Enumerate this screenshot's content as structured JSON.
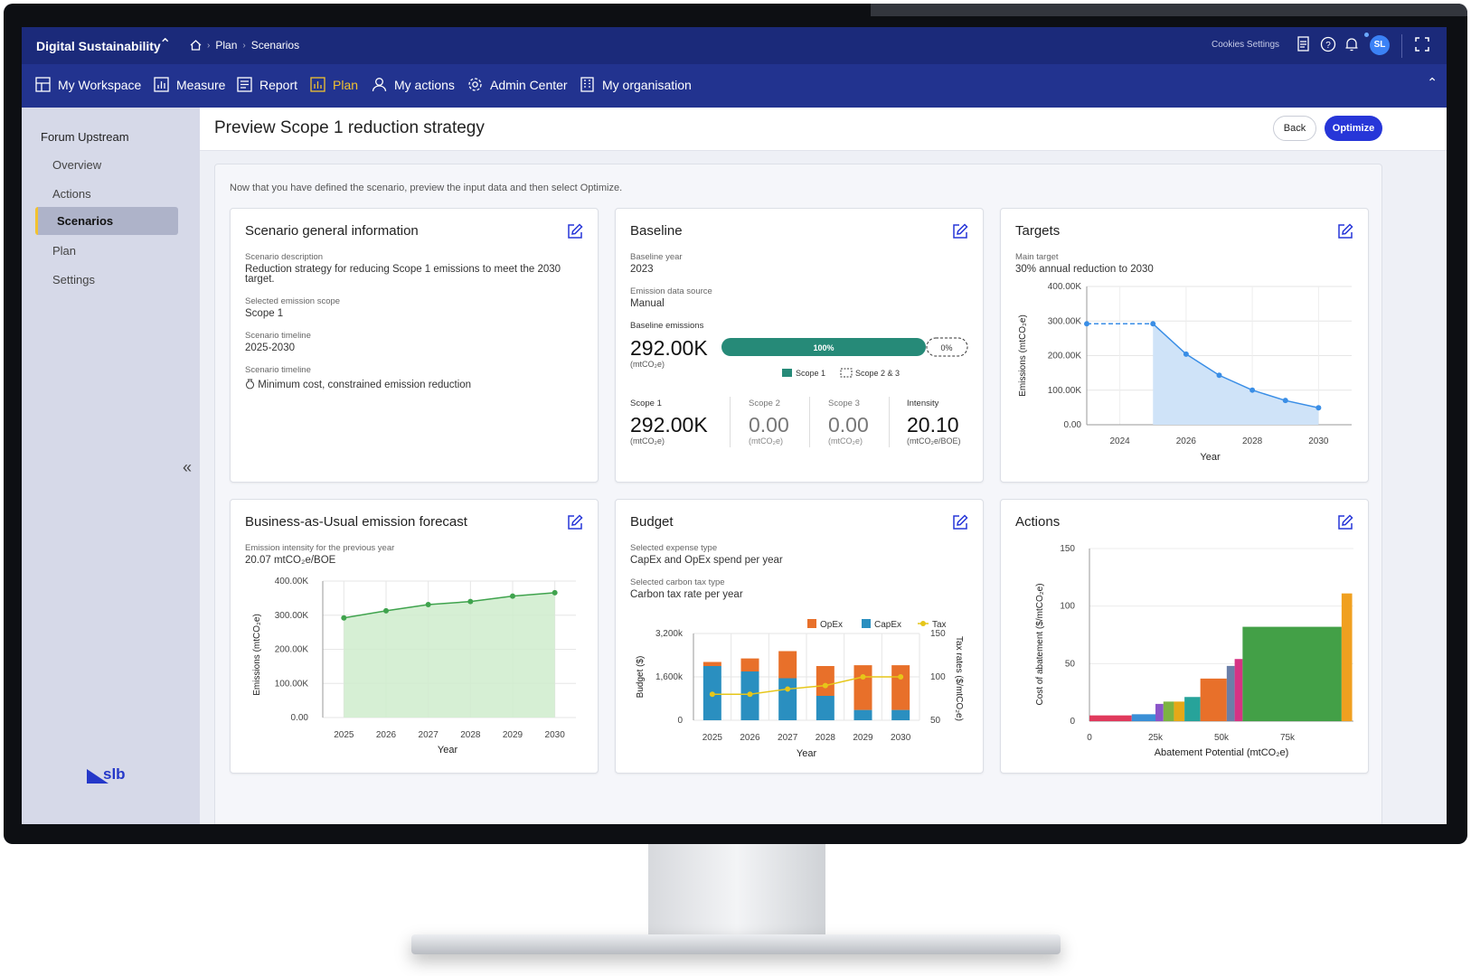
{
  "topbar": {
    "brand": "Digital Sustainability",
    "breadcrumb": [
      "Plan",
      "Scenarios"
    ],
    "cookies": "Cookies Settings",
    "avatar": "SL"
  },
  "nav": {
    "items": [
      {
        "label": "My Workspace",
        "icon": "grid-icon"
      },
      {
        "label": "Measure",
        "icon": "bar-chart-icon"
      },
      {
        "label": "Report",
        "icon": "document-icon"
      },
      {
        "label": "Plan",
        "icon": "plan-chart-icon",
        "active": true
      },
      {
        "label": "My actions",
        "icon": "user-icon"
      },
      {
        "label": "Admin Center",
        "icon": "gear-icon"
      },
      {
        "label": "My organisation",
        "icon": "building-icon"
      }
    ]
  },
  "sidebar": {
    "title": "Forum Upstream",
    "items": [
      "Overview",
      "Actions",
      "Scenarios",
      "Plan",
      "Settings"
    ],
    "active": "Scenarios",
    "logo_text": "slb"
  },
  "page": {
    "title": "Preview Scope 1 reduction strategy",
    "back": "Back",
    "optimize": "Optimize",
    "intro": "Now that you have defined the scenario, preview the input data and then select Optimize."
  },
  "general": {
    "title": "Scenario general information",
    "desc_label": "Scenario description",
    "desc": "Reduction strategy for reducing Scope 1 emissions to meet the 2030 target.",
    "scope_label": "Selected emission scope",
    "scope": "Scope 1",
    "timeline_label": "Scenario timeline",
    "timeline": "2025-2030",
    "timeline2_label": "Scenario timeline",
    "timeline2": "Minimum cost, constrained emission reduction"
  },
  "baseline": {
    "title": "Baseline",
    "year_label": "Baseline year",
    "year": "2023",
    "source_label": "Emission data source",
    "source": "Manual",
    "emissions_label": "Baseline emissions",
    "emissions": "292.00K",
    "unit": "(mtCO₂e)",
    "bar_scope1": 1.0,
    "bar_scope1_label": "100%",
    "bar_other_label": "0%",
    "legend_scope1": "Scope 1",
    "legend_scope23": "Scope 2 & 3",
    "scope1_label": "Scope 1",
    "scope1_value": "292.00K",
    "scope2_label": "Scope 2",
    "scope2_value": "0.00",
    "scope3_label": "Scope 3",
    "scope3_value": "0.00",
    "intensity_label": "Intensity",
    "intensity_value": "20.10",
    "intensity_unit": "(mtCO₂e/BOE)",
    "color_scope1": "#268a78"
  },
  "targets": {
    "title": "Targets",
    "main_label": "Main target",
    "main": "30% annual reduction to 2030"
  },
  "bau": {
    "title": "Business-as-Usual emission forecast",
    "intensity_label": "Emission intensity for the previous year",
    "intensity": "20.07 mtCO₂e/BOE"
  },
  "budget": {
    "title": "Budget",
    "expense_label": "Selected expense type",
    "expense": "CapEx and OpEx spend per year",
    "tax_label": "Selected carbon tax type",
    "tax": "Carbon tax rate per year"
  },
  "actions": {
    "title": "Actions"
  },
  "chart_data": [
    {
      "type": "line",
      "id": "targets",
      "xlabel": "Year",
      "ylabel": "Emissions (mtCO₂e)",
      "x_ticks": [
        "2024",
        "2026",
        "2028",
        "2030"
      ],
      "y_ticks": [
        "0.00",
        "100.00K",
        "200.00K",
        "300.00K",
        "400.00K"
      ],
      "ylim": [
        0,
        400000
      ],
      "xlim": [
        2023,
        2031
      ],
      "baseline_segment": {
        "x": [
          2023,
          2025
        ],
        "y": [
          292000,
          292000
        ],
        "style": "dashed"
      },
      "series": [
        {
          "x": [
            2025,
            2026,
            2027,
            2028,
            2029,
            2030
          ],
          "y": [
            292000,
            204400,
            143080,
            100156,
            70109,
            49077
          ]
        }
      ],
      "color": "#3a8ee6"
    },
    {
      "type": "area",
      "id": "bau",
      "xlabel": "Year",
      "ylabel": "Emissions (mtCO₂e)",
      "x_ticks": [
        "2025",
        "2026",
        "2027",
        "2028",
        "2029",
        "2030"
      ],
      "y_ticks": [
        "0.00",
        "100.00K",
        "200.00K",
        "300.00K",
        "400.00K"
      ],
      "ylim": [
        0,
        400000
      ],
      "series": [
        {
          "x": [
            2025,
            2026,
            2027,
            2028,
            2029,
            2030
          ],
          "y": [
            292000,
            313000,
            331000,
            340000,
            356000,
            366000
          ]
        }
      ],
      "color": "#3fa34d"
    },
    {
      "type": "bar",
      "id": "budget",
      "xlabel": "Year",
      "ylabel": "Budget ($)",
      "y2label": "Tax rates ($/mtCO₂e)",
      "categories": [
        "2025",
        "2026",
        "2027",
        "2028",
        "2029",
        "2030"
      ],
      "y_ticks": [
        "0",
        "1,600k",
        "3,200k"
      ],
      "y2_ticks": [
        "50",
        "100",
        "150"
      ],
      "ylim": [
        0,
        3200
      ],
      "y2lim": [
        50,
        150
      ],
      "series": [
        {
          "name": "CapEx",
          "values": [
            2000,
            1800,
            1550,
            900,
            380,
            380
          ],
          "color": "#2a8fc0"
        },
        {
          "name": "OpEx",
          "values": [
            150,
            480,
            1000,
            1100,
            1650,
            1650
          ],
          "color": "#e8702a"
        },
        {
          "name": "Tax",
          "values": [
            80,
            80,
            86,
            90,
            100,
            100
          ],
          "color": "#e6c619",
          "axis": "y2",
          "kind": "line"
        }
      ],
      "legend": "top-right"
    },
    {
      "type": "bar",
      "id": "actions",
      "xlabel": "Abatement Potential (mtCO₂e)",
      "ylabel": "Cost of abatement ($/mtCO₂e)",
      "x_ticks": [
        "0",
        "25k",
        "50k",
        "75k"
      ],
      "y_ticks": [
        "0",
        "50",
        "100",
        "150"
      ],
      "xlim": [
        0,
        100000
      ],
      "ylim": [
        0,
        150
      ],
      "bars": [
        {
          "x0": 0,
          "x1": 16000,
          "value": 5,
          "color": "#e03a5c"
        },
        {
          "x0": 16000,
          "x1": 25000,
          "value": 6,
          "color": "#3a8fd6"
        },
        {
          "x0": 25000,
          "x1": 28000,
          "value": 15,
          "color": "#8a55c9"
        },
        {
          "x0": 28000,
          "x1": 32000,
          "value": 17,
          "color": "#7cb342"
        },
        {
          "x0": 32000,
          "x1": 36000,
          "value": 17,
          "color": "#e6a817"
        },
        {
          "x0": 36000,
          "x1": 42000,
          "value": 21,
          "color": "#27a39a"
        },
        {
          "x0": 42000,
          "x1": 52000,
          "value": 37,
          "color": "#e8702a"
        },
        {
          "x0": 52000,
          "x1": 55000,
          "value": 48,
          "color": "#6b7fa8"
        },
        {
          "x0": 55000,
          "x1": 58000,
          "value": 54,
          "color": "#d63384"
        },
        {
          "x0": 58000,
          "x1": 95500,
          "value": 82,
          "color": "#43a047"
        },
        {
          "x0": 95500,
          "x1": 99500,
          "value": 111,
          "color": "#f0a020"
        }
      ]
    }
  ]
}
